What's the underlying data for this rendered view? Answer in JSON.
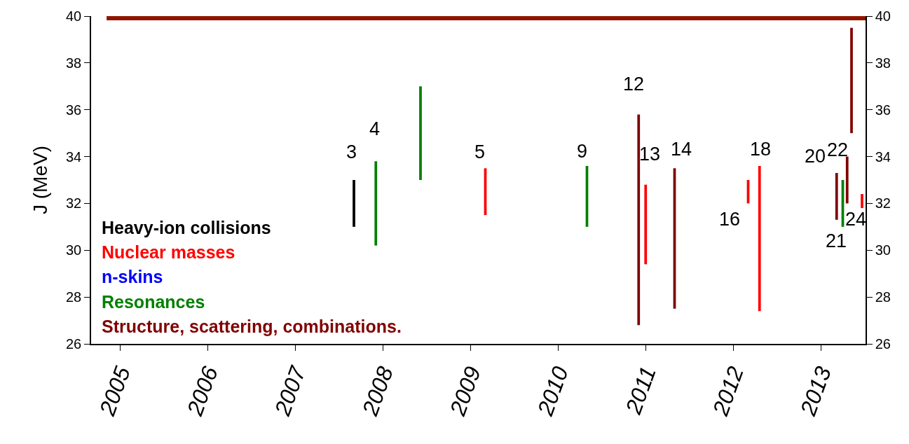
{
  "chart_data": {
    "type": "bar",
    "ylabel": "J (MeV)",
    "xlim": [
      2004.67,
      2013.51
    ],
    "xticks": [
      2005,
      2006,
      2007,
      2008,
      2009,
      2010,
      2011,
      2012,
      2013
    ],
    "ylim": [
      26,
      40
    ],
    "yticks": [
      26,
      28,
      30,
      32,
      34,
      36,
      38,
      40
    ],
    "y2lim": [
      26,
      40
    ],
    "y2ticks": [
      26,
      28,
      30,
      32,
      34,
      36,
      38,
      40
    ],
    "series": [
      {
        "name": "Heavy-ion collisions",
        "color": "#000000",
        "x": [
          2007.67
        ],
        "base": [
          31
        ],
        "values": [
          2
        ]
      },
      {
        "name": "Nuclear masses",
        "color": "#ff0000",
        "x": [
          2009.17,
          2011.0,
          2012.17,
          2012.3,
          2013.47
        ],
        "base": [
          31.5,
          29.4,
          32,
          27.4,
          31.8
        ],
        "values": [
          2,
          3.4,
          1,
          6.2,
          0.6
        ]
      },
      {
        "name": "n-skins",
        "color": "#0000ff"
      },
      {
        "name": "Resonances",
        "color": "#008000",
        "x": [
          2007.92,
          2008.43,
          2010.33,
          2013.25
        ],
        "base": [
          30.2,
          33,
          31,
          31
        ],
        "values": [
          3.6,
          4,
          2.6,
          2
        ]
      },
      {
        "name": "Structure, scattering, combinations.",
        "color": "#800000",
        "x": [
          2010.92,
          2011.33,
          2013.18,
          2013.3,
          2013.35
        ],
        "base": [
          26.8,
          27.5,
          31.3,
          32,
          35
        ],
        "values": [
          9,
          6,
          2,
          2,
          4.5
        ]
      }
    ],
    "ref_lines": [
      {
        "axis": "y",
        "value": 40,
        "color": "#8f1500"
      }
    ],
    "annotations": [
      {
        "text": "3",
        "x": 2007.67,
        "y": 33
      },
      {
        "text": "4",
        "x": 2007.92,
        "y": 33.8
      },
      {
        "text": "5",
        "x": 2009.17,
        "y": 33.5
      },
      {
        "text": "9",
        "x": 2010.33,
        "y": 33.6
      },
      {
        "text": "12",
        "x": 2010.92,
        "y": 35.8
      },
      {
        "text": "13",
        "x": 2011.0,
        "y": 32.8
      },
      {
        "text": "14",
        "x": 2011.33,
        "y": 33.5
      },
      {
        "text": "16",
        "x": 2012.17,
        "y": 32
      },
      {
        "text": "18",
        "x": 2012.3,
        "y": 33.6
      },
      {
        "text": "20",
        "x": 2013.18,
        "y": 33.3
      },
      {
        "text": "21",
        "x": 2013.25,
        "y": 31
      },
      {
        "text": "22",
        "x": 2013.3,
        "y": 34
      },
      {
        "text": "24",
        "x": 2013.47,
        "y": 32.4
      }
    ]
  }
}
